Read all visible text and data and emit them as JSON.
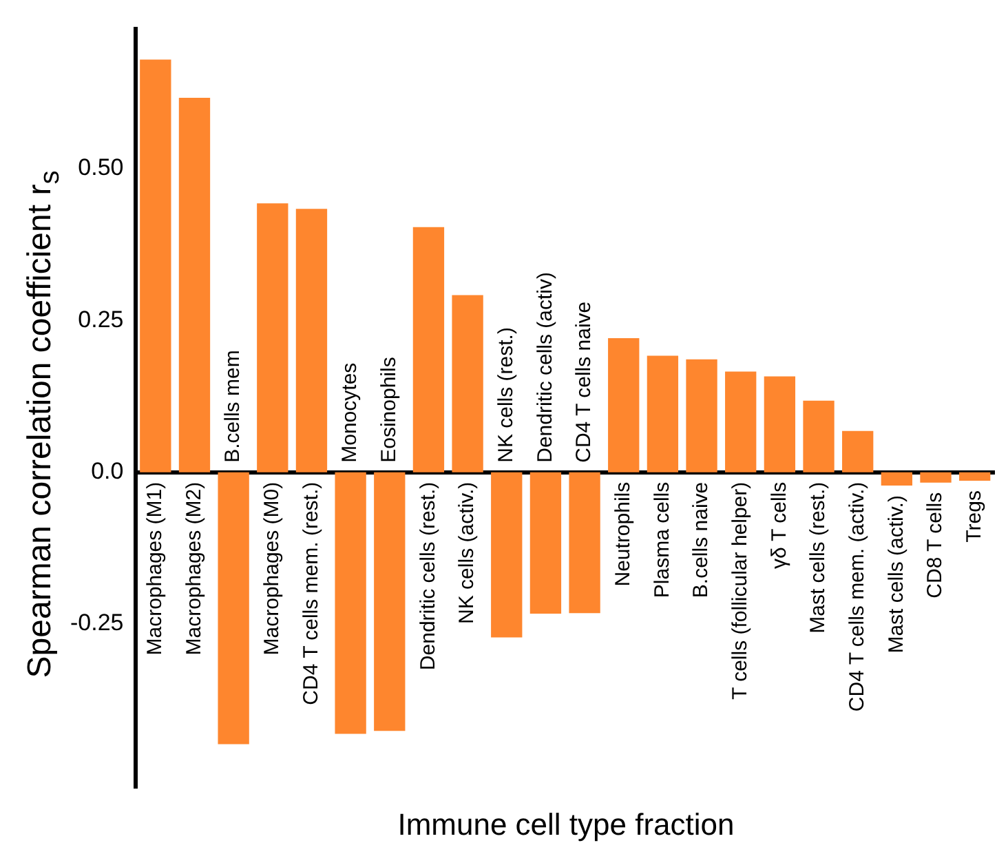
{
  "chart_data": {
    "type": "bar",
    "xlabel": "Immune cell type fraction",
    "ylabel": "Spearman correlation coefficient r$_{s}$",
    "categories": [
      "Macrophages (M1)",
      "Macrophages (M2)",
      "B.cells mem",
      "Macrophages (M0)",
      "CD4 T cells mem. (rest.)",
      "Monocytes",
      "Eosinophils",
      "Dendritic cells (rest.)",
      "NK cells (activ.)",
      "NK cells (rest.)",
      "Dendritic cells (activ)",
      "CD4 T cells naive",
      "Neutrophils",
      "Plasma cells",
      "B.cells naive",
      "T cells (follicular helper)",
      "γδ T cells",
      "Mast cells (rest.)",
      "CD4 T cells mem. (activ.)",
      "Mast cells (activ.)",
      "CD8 T cells",
      "Tregs"
    ],
    "values": [
      0.68,
      0.617,
      -0.448,
      0.443,
      0.434,
      -0.431,
      -0.426,
      0.404,
      0.292,
      -0.272,
      -0.233,
      -0.232,
      0.221,
      0.192,
      0.186,
      0.166,
      0.158,
      0.118,
      0.068,
      -0.022,
      -0.017,
      -0.014
    ],
    "color": "#fe862e",
    "ylim": [
      -0.52,
      0.73
    ],
    "yticks": [
      {
        "value": -0.25,
        "label": "-0.25"
      },
      {
        "value": 0,
        "label": "0.0"
      },
      {
        "value": 0.25,
        "label": "0.25"
      },
      {
        "value": 0.5,
        "label": "0.50"
      }
    ],
    "grid": false,
    "legend": false
  }
}
